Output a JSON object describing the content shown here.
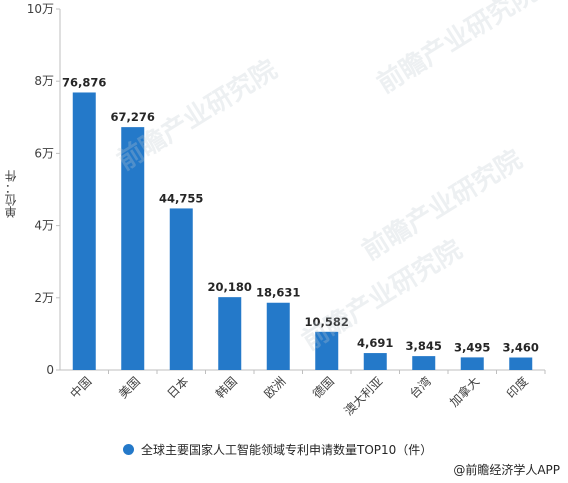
{
  "chart_data": {
    "type": "bar",
    "title": "",
    "ylabel": "单位：件",
    "xlabel": "",
    "ylim": [
      0,
      100000
    ],
    "ytick_values": [
      0,
      20000,
      40000,
      60000,
      80000,
      100000
    ],
    "ytick_labels": [
      "0",
      "2万",
      "4万",
      "6万",
      "8万",
      "10万"
    ],
    "categories": [
      "中国",
      "美国",
      "日本",
      "韩国",
      "欧洲",
      "德国",
      "澳大利亚",
      "台湾",
      "加拿大",
      "印度"
    ],
    "series": [
      {
        "name": "全球主要国家人工智能领域专利申请数量TOP10（件）",
        "values": [
          76876,
          67276,
          44755,
          20180,
          18631,
          10582,
          4691,
          3845,
          3495,
          3460
        ],
        "data_labels": [
          "76,876",
          "67,276",
          "44,755",
          "20,180",
          "18,631",
          "10,582",
          "4,691",
          "3,845",
          "3,495",
          "3,460"
        ],
        "color": "#2479c9"
      }
    ],
    "legend_position": "bottom",
    "grid": false
  },
  "source": "@前瞻经济学人APP",
  "watermark": "前瞻产业研究院"
}
